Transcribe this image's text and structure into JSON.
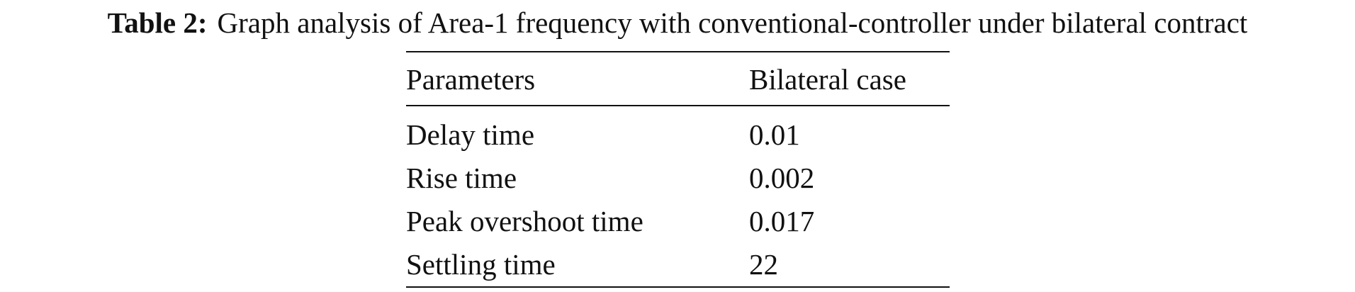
{
  "caption": {
    "label": "Table 2:",
    "text": "Graph analysis of Area-1 frequency with conventional-controller under bilateral contract"
  },
  "table": {
    "header": [
      "Parameters",
      "Bilateral case"
    ],
    "rows": [
      [
        "Delay time",
        "0.01"
      ],
      [
        "Rise time",
        "0.002"
      ],
      [
        "Peak overshoot time",
        "0.017"
      ],
      [
        "Settling time",
        "22"
      ]
    ]
  }
}
